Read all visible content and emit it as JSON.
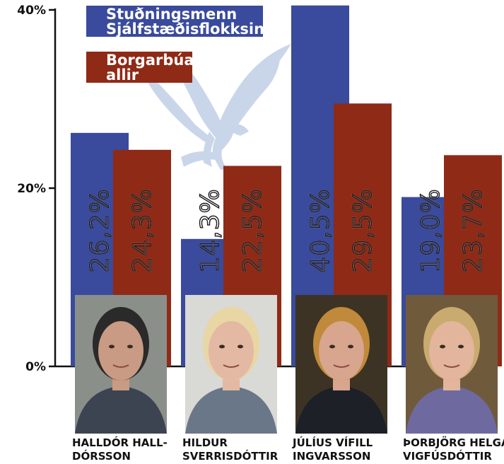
{
  "chart_data": {
    "type": "bar",
    "categories": [
      "HALLDÓR HALL-DÓRSSON",
      "HILDUR SVERRISDÓTTIR",
      "JÚLÍUS VÍFILL INGVARSSON",
      "ÞORBJÖRG HELGA VIGFÚSDÓTTIR"
    ],
    "category_lines": [
      [
        "HALLDÓR HALL-",
        "DÓRSSON"
      ],
      [
        "HILDUR",
        "SVERRISDÓTTIR"
      ],
      [
        "JÚLÍUS VÍFILL",
        "INGVARSSON"
      ],
      [
        "ÞORBJÖRG HELGA",
        "VIGFÚSDÓTTIR"
      ]
    ],
    "series": [
      {
        "name": "Stuðningsmenn Sjálfstæðisflokksins",
        "legend_lines": [
          "Stuðningsmenn",
          "Sjálfstæðisflokksins"
        ],
        "color": "#3a4a9c",
        "values": [
          26.2,
          14.3,
          40.5,
          19.0
        ],
        "labels": [
          "26,2%",
          "14,3%",
          "40,5%",
          "19,0%"
        ]
      },
      {
        "name": "Borgarbúar allir",
        "legend_lines": [
          "Borgarbúar",
          "allir"
        ],
        "color": "#8f2a16",
        "values": [
          24.3,
          22.5,
          29.5,
          23.7
        ],
        "labels": [
          "24,3%",
          "22,5%",
          "29,5%",
          "23,7%"
        ]
      }
    ],
    "ylim": [
      0,
      40
    ],
    "yticks": [
      "0%",
      "20%",
      "40%"
    ],
    "ytick_values": [
      0,
      20,
      40
    ],
    "legend_position": "top-left",
    "grid": false,
    "background_logo": "falcon-icon",
    "logo_color": "#c9d6ea",
    "axis_color": "#111111",
    "portraits": [
      "person-photo",
      "person-photo",
      "person-photo",
      "person-photo"
    ]
  }
}
